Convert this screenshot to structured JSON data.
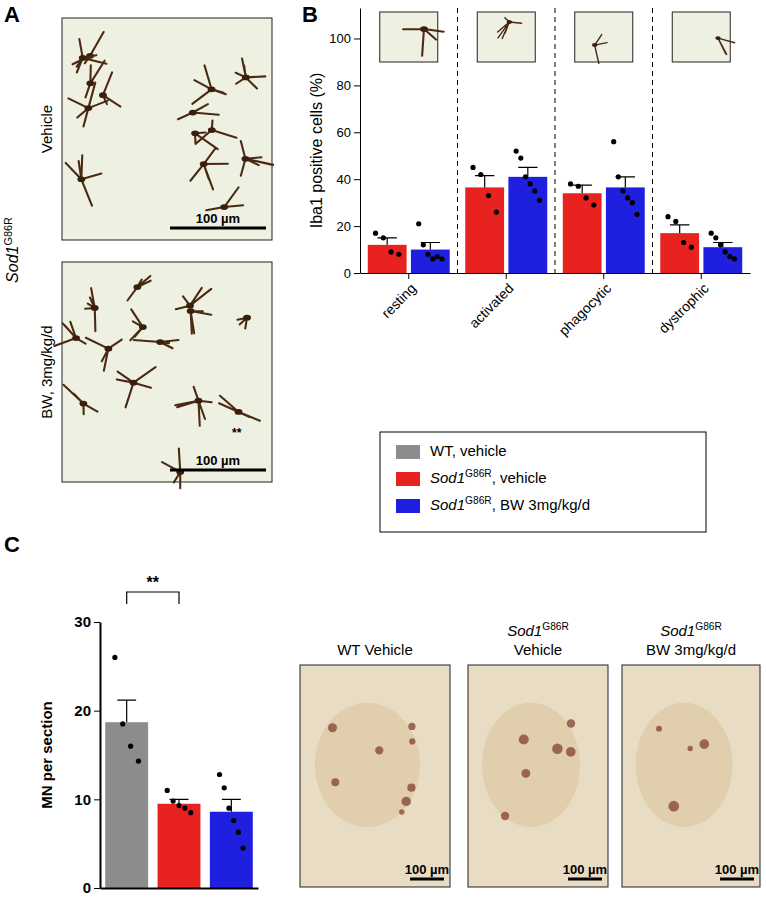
{
  "figure": {
    "panel_labels": [
      "A",
      "B",
      "C"
    ],
    "panel_a": {
      "row_label": "Sod1G86R",
      "images": [
        {
          "label": "Vehicle",
          "scale_bar": "100 µm"
        },
        {
          "label": "BW, 3mg/kg/d",
          "scale_bar": "100 µm",
          "annotation": "**"
        }
      ]
    },
    "panel_c_images": [
      {
        "title": [
          "WT Vehicle"
        ],
        "scale_bar": "100 µm"
      },
      {
        "title": [
          "Sod1G86R",
          "Vehicle"
        ],
        "scale_bar": "100 µm"
      },
      {
        "title": [
          "Sod1G86R",
          "BW 3mg/kg/d"
        ],
        "scale_bar": "100 µm"
      }
    ],
    "legend": [
      {
        "name": "WT, vehicle",
        "color": "#8c8c8c"
      },
      {
        "name": "Sod1G86R, vehicle",
        "color": "#e8231f"
      },
      {
        "name": "Sod1G86R, BW 3mg/kg/d",
        "color": "#1f1fe0"
      }
    ]
  },
  "chart_data": [
    {
      "type": "bar",
      "ylabel": "Iba1 positive cells (%)",
      "categories": [
        "resting",
        "activated",
        "phagocytic",
        "dystrophic"
      ],
      "ylim": [
        0,
        113
      ],
      "yticks": [
        0,
        20,
        40,
        60,
        80,
        100
      ],
      "series": [
        {
          "color": "#e8231f",
          "values": [
            12,
            36.5,
            34,
            17
          ],
          "errors": [
            3,
            5,
            3.5,
            3.5
          ],
          "points": [
            [
              17,
              15,
              9,
              8
            ],
            [
              45,
              42,
              33,
              26
            ],
            [
              38,
              37,
              32,
              29
            ],
            [
              24,
              22,
              13,
              11
            ]
          ]
        },
        {
          "color": "#1f1fe0",
          "values": [
            10,
            41,
            36.5,
            11
          ],
          "errors": [
            3,
            4,
            4.5,
            2
          ],
          "points": [
            [
              21,
              12,
              8,
              6,
              7,
              6
            ],
            [
              52,
              49,
              41,
              38,
              35,
              31
            ],
            [
              56,
              41,
              35,
              32,
              30,
              25
            ],
            [
              17,
              15,
              12,
              9,
              7,
              6
            ]
          ]
        }
      ]
    },
    {
      "type": "bar",
      "ylabel": "MN per section",
      "categories": [
        null,
        null,
        null
      ],
      "ylim": [
        0,
        30
      ],
      "yticks": [
        0,
        10,
        20,
        30
      ],
      "values": [
        18.7,
        9.5,
        8.6
      ],
      "errors": [
        2.5,
        0.5,
        1.4
      ],
      "colors": [
        "#8c8c8c",
        "#e8231f",
        "#1f1fe0"
      ],
      "points": [
        [
          26,
          18.5,
          16,
          14.3
        ],
        [
          11,
          9.8,
          9.3,
          9,
          8.5
        ],
        [
          12.8,
          11.3,
          9,
          7.6,
          6.3,
          4.5
        ]
      ],
      "annotations": [
        {
          "text": "**",
          "from": 0,
          "to": 1
        }
      ]
    }
  ]
}
